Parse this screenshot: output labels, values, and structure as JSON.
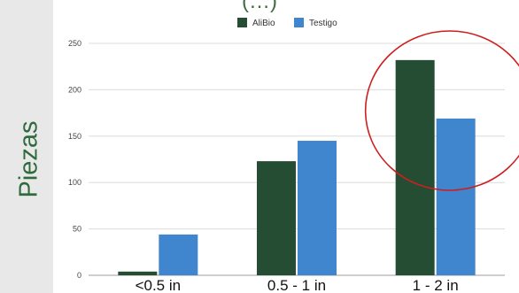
{
  "top_text": "(…)",
  "chart_data": {
    "type": "bar",
    "categories": [
      "<0.5 in",
      "0.5 - 1 in",
      "1 - 2 in"
    ],
    "series": [
      {
        "name": "AliBio",
        "values": [
          4,
          123,
          232
        ],
        "color": "#254d33"
      },
      {
        "name": "Testigo",
        "values": [
          44,
          145,
          169
        ],
        "color": "#3f86cf"
      }
    ],
    "ylabel": "Piezas",
    "ylim": [
      0,
      250
    ],
    "yticks": [
      0,
      50,
      100,
      150,
      200,
      250
    ],
    "grid": true,
    "legend_position": "top-center",
    "highlight": {
      "shape": "circle",
      "category": "1 - 2 in",
      "color": "#cc1f1f"
    }
  }
}
